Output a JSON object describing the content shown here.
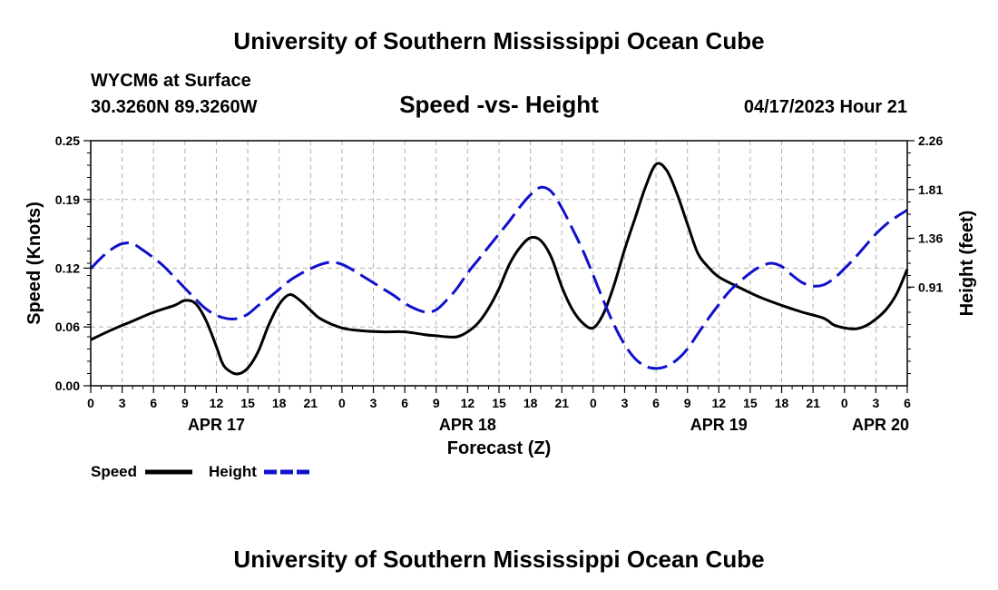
{
  "page": {
    "title": "University of Southern Mississippi Ocean Cube",
    "footer_title": "University of Southern Mississippi Ocean Cube",
    "station": "WYCM6 at Surface",
    "coordinates": "30.3260N  89.3260W",
    "datetime": "04/17/2023 Hour 21"
  },
  "colors": {
    "speed": "#000000",
    "height": "#1010cc",
    "grid": "#b0b0b0",
    "axis": "#000000"
  },
  "chart_data": {
    "type": "line",
    "title": "Speed -vs- Height",
    "xlabel": "Forecast (Z)",
    "ylabel": "Speed (Knots)",
    "y2label": "Height (feet)",
    "x_range_hours": [
      0,
      78
    ],
    "ylim": [
      0,
      0.25
    ],
    "y2lim": [
      0,
      2.26
    ],
    "x_tick_labels": [
      "0",
      "3",
      "6",
      "9",
      "12",
      "15",
      "18",
      "21",
      "0",
      "3",
      "6",
      "9",
      "12",
      "15",
      "18",
      "21",
      "0",
      "3",
      "6",
      "9",
      "12",
      "15",
      "18",
      "21",
      "0",
      "3",
      "6"
    ],
    "y_ticks": [
      0.0,
      0.06,
      0.12,
      0.19,
      0.25
    ],
    "y_tick_labels": [
      "0.00",
      "0.06",
      "0.12",
      "0.19",
      "0.25"
    ],
    "y2_ticks": [
      0.91,
      1.36,
      1.81,
      2.26
    ],
    "y2_tick_labels": [
      "0.91",
      "1.36",
      "1.81",
      "2.26"
    ],
    "date_labels": [
      {
        "text": "APR 17",
        "hour": 12
      },
      {
        "text": "APR 18",
        "hour": 36
      },
      {
        "text": "APR 19",
        "hour": 60
      },
      {
        "text": "APR 20",
        "hour": 78
      }
    ],
    "legend": [
      {
        "name": "Speed",
        "style": "solid"
      },
      {
        "name": "Height",
        "style": "dashed"
      }
    ],
    "series": [
      {
        "name": "Speed",
        "axis": "left",
        "style": "solid",
        "x": [
          0,
          2,
          4,
          6,
          8,
          9,
          10,
          11,
          12,
          12.5,
          13,
          14,
          15,
          16,
          17,
          18,
          19,
          20,
          21,
          22,
          24,
          26,
          28,
          30,
          32,
          33,
          34,
          35,
          36,
          37,
          38,
          39,
          40,
          41,
          42,
          43,
          44,
          45,
          46,
          47,
          48,
          49,
          50,
          51,
          52,
          53,
          54,
          55,
          56,
          57,
          58,
          59,
          60,
          62,
          64,
          66,
          68,
          70,
          71,
          72,
          73,
          74,
          75,
          76,
          77,
          78
        ],
        "values": [
          0.047,
          0.057,
          0.066,
          0.075,
          0.082,
          0.087,
          0.084,
          0.067,
          0.04,
          0.025,
          0.017,
          0.012,
          0.018,
          0.035,
          0.062,
          0.083,
          0.093,
          0.087,
          0.077,
          0.068,
          0.059,
          0.056,
          0.055,
          0.055,
          0.052,
          0.051,
          0.05,
          0.05,
          0.055,
          0.064,
          0.079,
          0.099,
          0.124,
          0.141,
          0.151,
          0.148,
          0.131,
          0.101,
          0.078,
          0.064,
          0.059,
          0.074,
          0.103,
          0.139,
          0.171,
          0.203,
          0.226,
          0.22,
          0.196,
          0.165,
          0.135,
          0.121,
          0.111,
          0.1,
          0.09,
          0.082,
          0.075,
          0.069,
          0.062,
          0.059,
          0.058,
          0.061,
          0.068,
          0.078,
          0.094,
          0.119
        ]
      },
      {
        "name": "Height",
        "axis": "right",
        "style": "dashed",
        "x": [
          0,
          1,
          2,
          3,
          4,
          5,
          6,
          7,
          8,
          9,
          10,
          11,
          12,
          13,
          14,
          15,
          16,
          17,
          18,
          19,
          20,
          21,
          22,
          23,
          24,
          25,
          26,
          27,
          28,
          29,
          30,
          31,
          32,
          33,
          34,
          35,
          36,
          37,
          38,
          39,
          40,
          41,
          42,
          43,
          44,
          45,
          46,
          47,
          48,
          49,
          50,
          51,
          52,
          53,
          54,
          55,
          56,
          57,
          58,
          59,
          60,
          61,
          62,
          63,
          64,
          65,
          66,
          67,
          68,
          69,
          70,
          71,
          72,
          73,
          74,
          75,
          76,
          77,
          78
        ],
        "values": [
          1.08,
          1.18,
          1.26,
          1.31,
          1.31,
          1.25,
          1.18,
          1.1,
          1.0,
          0.9,
          0.8,
          0.71,
          0.65,
          0.62,
          0.62,
          0.66,
          0.74,
          0.81,
          0.89,
          0.97,
          1.03,
          1.08,
          1.12,
          1.14,
          1.12,
          1.07,
          1.01,
          0.95,
          0.89,
          0.83,
          0.76,
          0.71,
          0.68,
          0.7,
          0.79,
          0.9,
          1.04,
          1.16,
          1.28,
          1.4,
          1.52,
          1.65,
          1.76,
          1.83,
          1.79,
          1.64,
          1.45,
          1.25,
          1.02,
          0.78,
          0.56,
          0.38,
          0.25,
          0.18,
          0.16,
          0.18,
          0.24,
          0.34,
          0.48,
          0.62,
          0.75,
          0.87,
          0.96,
          1.04,
          1.1,
          1.13,
          1.1,
          1.02,
          0.95,
          0.92,
          0.93,
          0.99,
          1.08,
          1.18,
          1.29,
          1.4,
          1.49,
          1.56,
          1.62
        ]
      }
    ]
  }
}
